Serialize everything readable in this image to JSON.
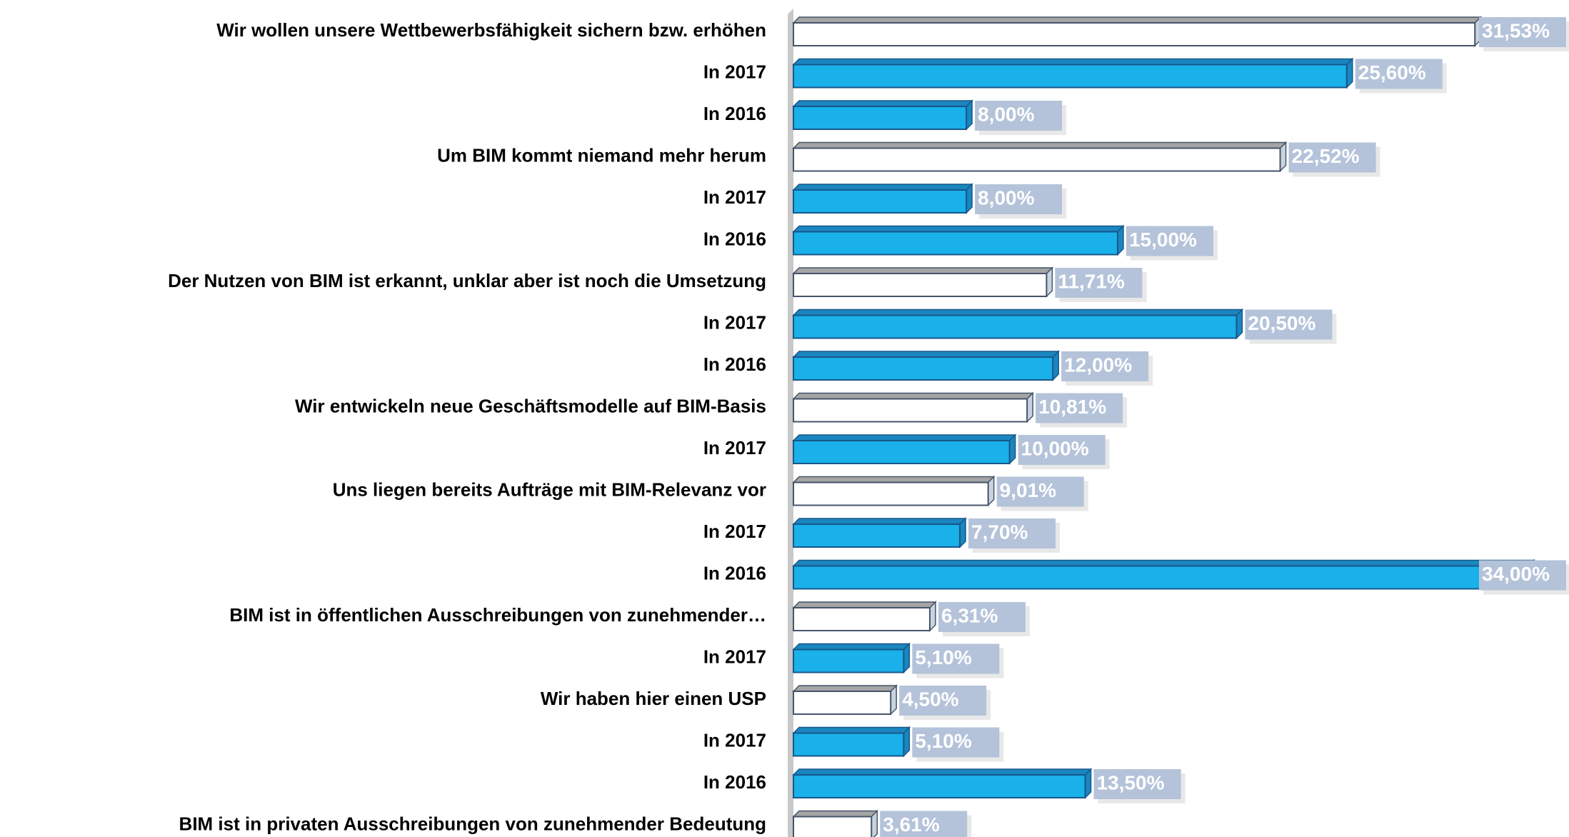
{
  "chart_data": {
    "type": "bar",
    "orientation": "horizontal",
    "categories": [
      "Wir wollen unsere Wettbewerbsfähigkeit sichern bzw. erhöhen",
      "In 2017",
      "In 2016",
      "Um BIM kommt niemand mehr herum",
      "In 2017",
      "In 2016",
      "Der Nutzen von BIM ist erkannt, unklar aber ist noch die Umsetzung",
      "In 2017",
      "In 2016",
      "Wir entwickeln neue Geschäftsmodelle auf BIM-Basis",
      "In 2017",
      "Uns liegen bereits Aufträge mit BIM-Relevanz vor",
      "In 2017",
      "In 2016",
      "BIM ist in öffentlichen Ausschreibungen von zunehmender…",
      "In 2017",
      "Wir haben hier einen USP",
      "In 2017",
      "In 2016",
      "BIM ist in privaten Ausschreibungen von zunehmender Bedeutung"
    ],
    "values": [
      31.53,
      25.6,
      8.0,
      22.52,
      8.0,
      15.0,
      11.71,
      20.5,
      12.0,
      10.81,
      10.0,
      9.01,
      7.7,
      34.0,
      6.31,
      5.1,
      4.5,
      5.1,
      13.5,
      3.61
    ],
    "value_labels": [
      "31,53%",
      "25,60%",
      "8,00%",
      "22,52%",
      "8,00%",
      "15,00%",
      "11,71%",
      "20,50%",
      "12,00%",
      "10,81%",
      "10,00%",
      "9,01%",
      "7,70%",
      "34,00%",
      "6,31%",
      "5,10%",
      "4,50%",
      "5,10%",
      "13,50%",
      "3,61%"
    ],
    "colors": [
      "#ffffff",
      "#1ab0ea",
      "#1ab0ea",
      "#ffffff",
      "#1ab0ea",
      "#1ab0ea",
      "#ffffff",
      "#1ab0ea",
      "#1ab0ea",
      "#ffffff",
      "#1ab0ea",
      "#ffffff",
      "#1ab0ea",
      "#1ab0ea",
      "#ffffff",
      "#1ab0ea",
      "#ffffff",
      "#1ab0ea",
      "#1ab0ea",
      "#ffffff"
    ]
  }
}
